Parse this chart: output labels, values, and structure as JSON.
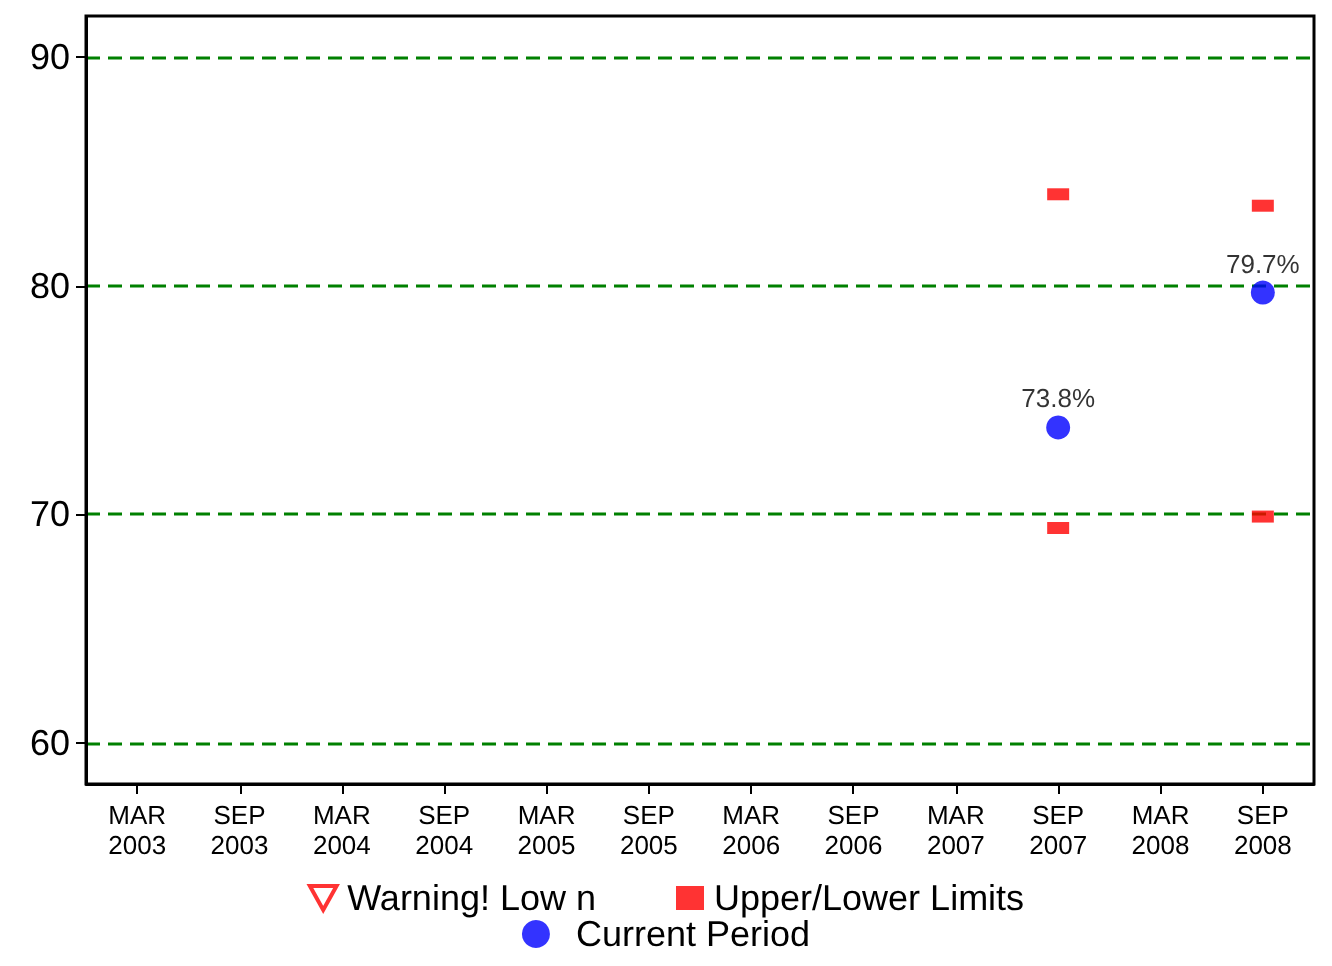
{
  "chart_data": {
    "type": "scatter",
    "categories": [
      "MAR\n2003",
      "SEP\n2003",
      "MAR\n2004",
      "SEP\n2004",
      "MAR\n2005",
      "SEP\n2005",
      "MAR\n2006",
      "SEP\n2006",
      "MAR\n2007",
      "SEP\n2007",
      "MAR\n2008",
      "SEP\n2008"
    ],
    "series": [
      {
        "name": "Warning! Low n",
        "color": "#ff0000",
        "marker": "triangle",
        "values": [
          null,
          null,
          null,
          null,
          null,
          null,
          null,
          null,
          null,
          null,
          null,
          null
        ]
      },
      {
        "name": "Upper/Lower Limits",
        "color": "#ff0000",
        "marker": "square",
        "values": [
          null,
          null,
          null,
          null,
          null,
          null,
          null,
          null,
          null,
          84.0,
          null,
          83.5
        ]
      },
      {
        "color": "#ff0000",
        "marker": "square",
        "values": [
          null,
          null,
          null,
          null,
          null,
          null,
          null,
          null,
          null,
          69.4,
          null,
          69.9
        ]
      },
      {
        "name": "Current Period",
        "color": "#0000ff",
        "marker": "circle",
        "values": [
          null,
          null,
          null,
          null,
          null,
          null,
          null,
          null,
          null,
          73.8,
          null,
          79.7
        ],
        "value_labels": [
          null,
          null,
          null,
          null,
          null,
          null,
          null,
          null,
          null,
          "73.8%",
          null,
          "79.7%"
        ]
      }
    ],
    "ylim": [
      58.2,
      91.8
    ],
    "yticks": [
      60,
      70,
      80,
      90
    ],
    "grid": "y",
    "legend": "bottom"
  }
}
